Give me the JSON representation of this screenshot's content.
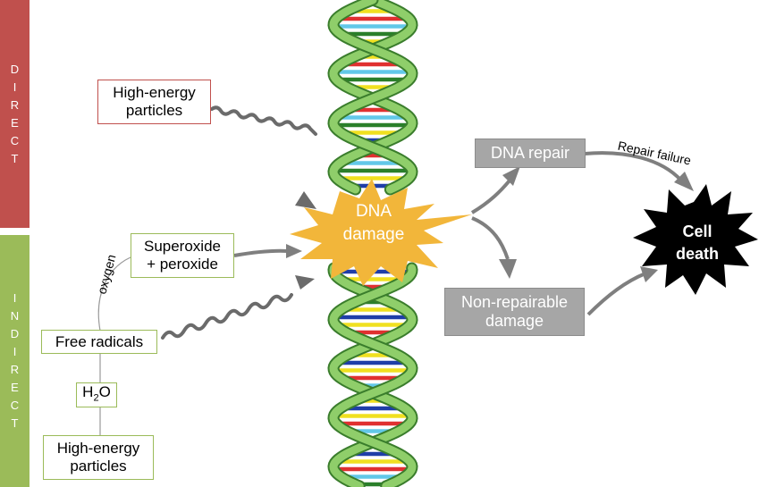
{
  "sections": {
    "direct": [
      "D",
      "I",
      "R",
      "E",
      "C",
      "T"
    ],
    "indirect": [
      "I",
      "N",
      "D",
      "I",
      "R",
      "E",
      "C",
      "T"
    ]
  },
  "boxes": {
    "high_energy_direct": [
      "High-energy",
      "particles"
    ],
    "superoxide": [
      "Superoxide",
      "+ peroxide"
    ],
    "free_radicals": "Free radicals",
    "water": {
      "main": "H",
      "sub": "2",
      "tail": "O"
    },
    "high_energy_indirect": [
      "High-energy",
      "particles"
    ],
    "dna_repair": "DNA repair",
    "non_repairable": [
      "Non-repairable",
      "damage"
    ]
  },
  "labels": {
    "oxygen": "oxygen",
    "repair_failure": "Repair failure"
  },
  "bursts": {
    "dna_damage": [
      "DNA",
      "damage"
    ],
    "cell_death": [
      "Cell",
      "death"
    ]
  },
  "colors": {
    "direct": "#c0504d",
    "indirect": "#9bbb59",
    "burst_yellow": "#f2b63a",
    "burst_black": "#000000",
    "helix_green": "#8fce6a",
    "arrow_gray": "#7f7f7f"
  }
}
